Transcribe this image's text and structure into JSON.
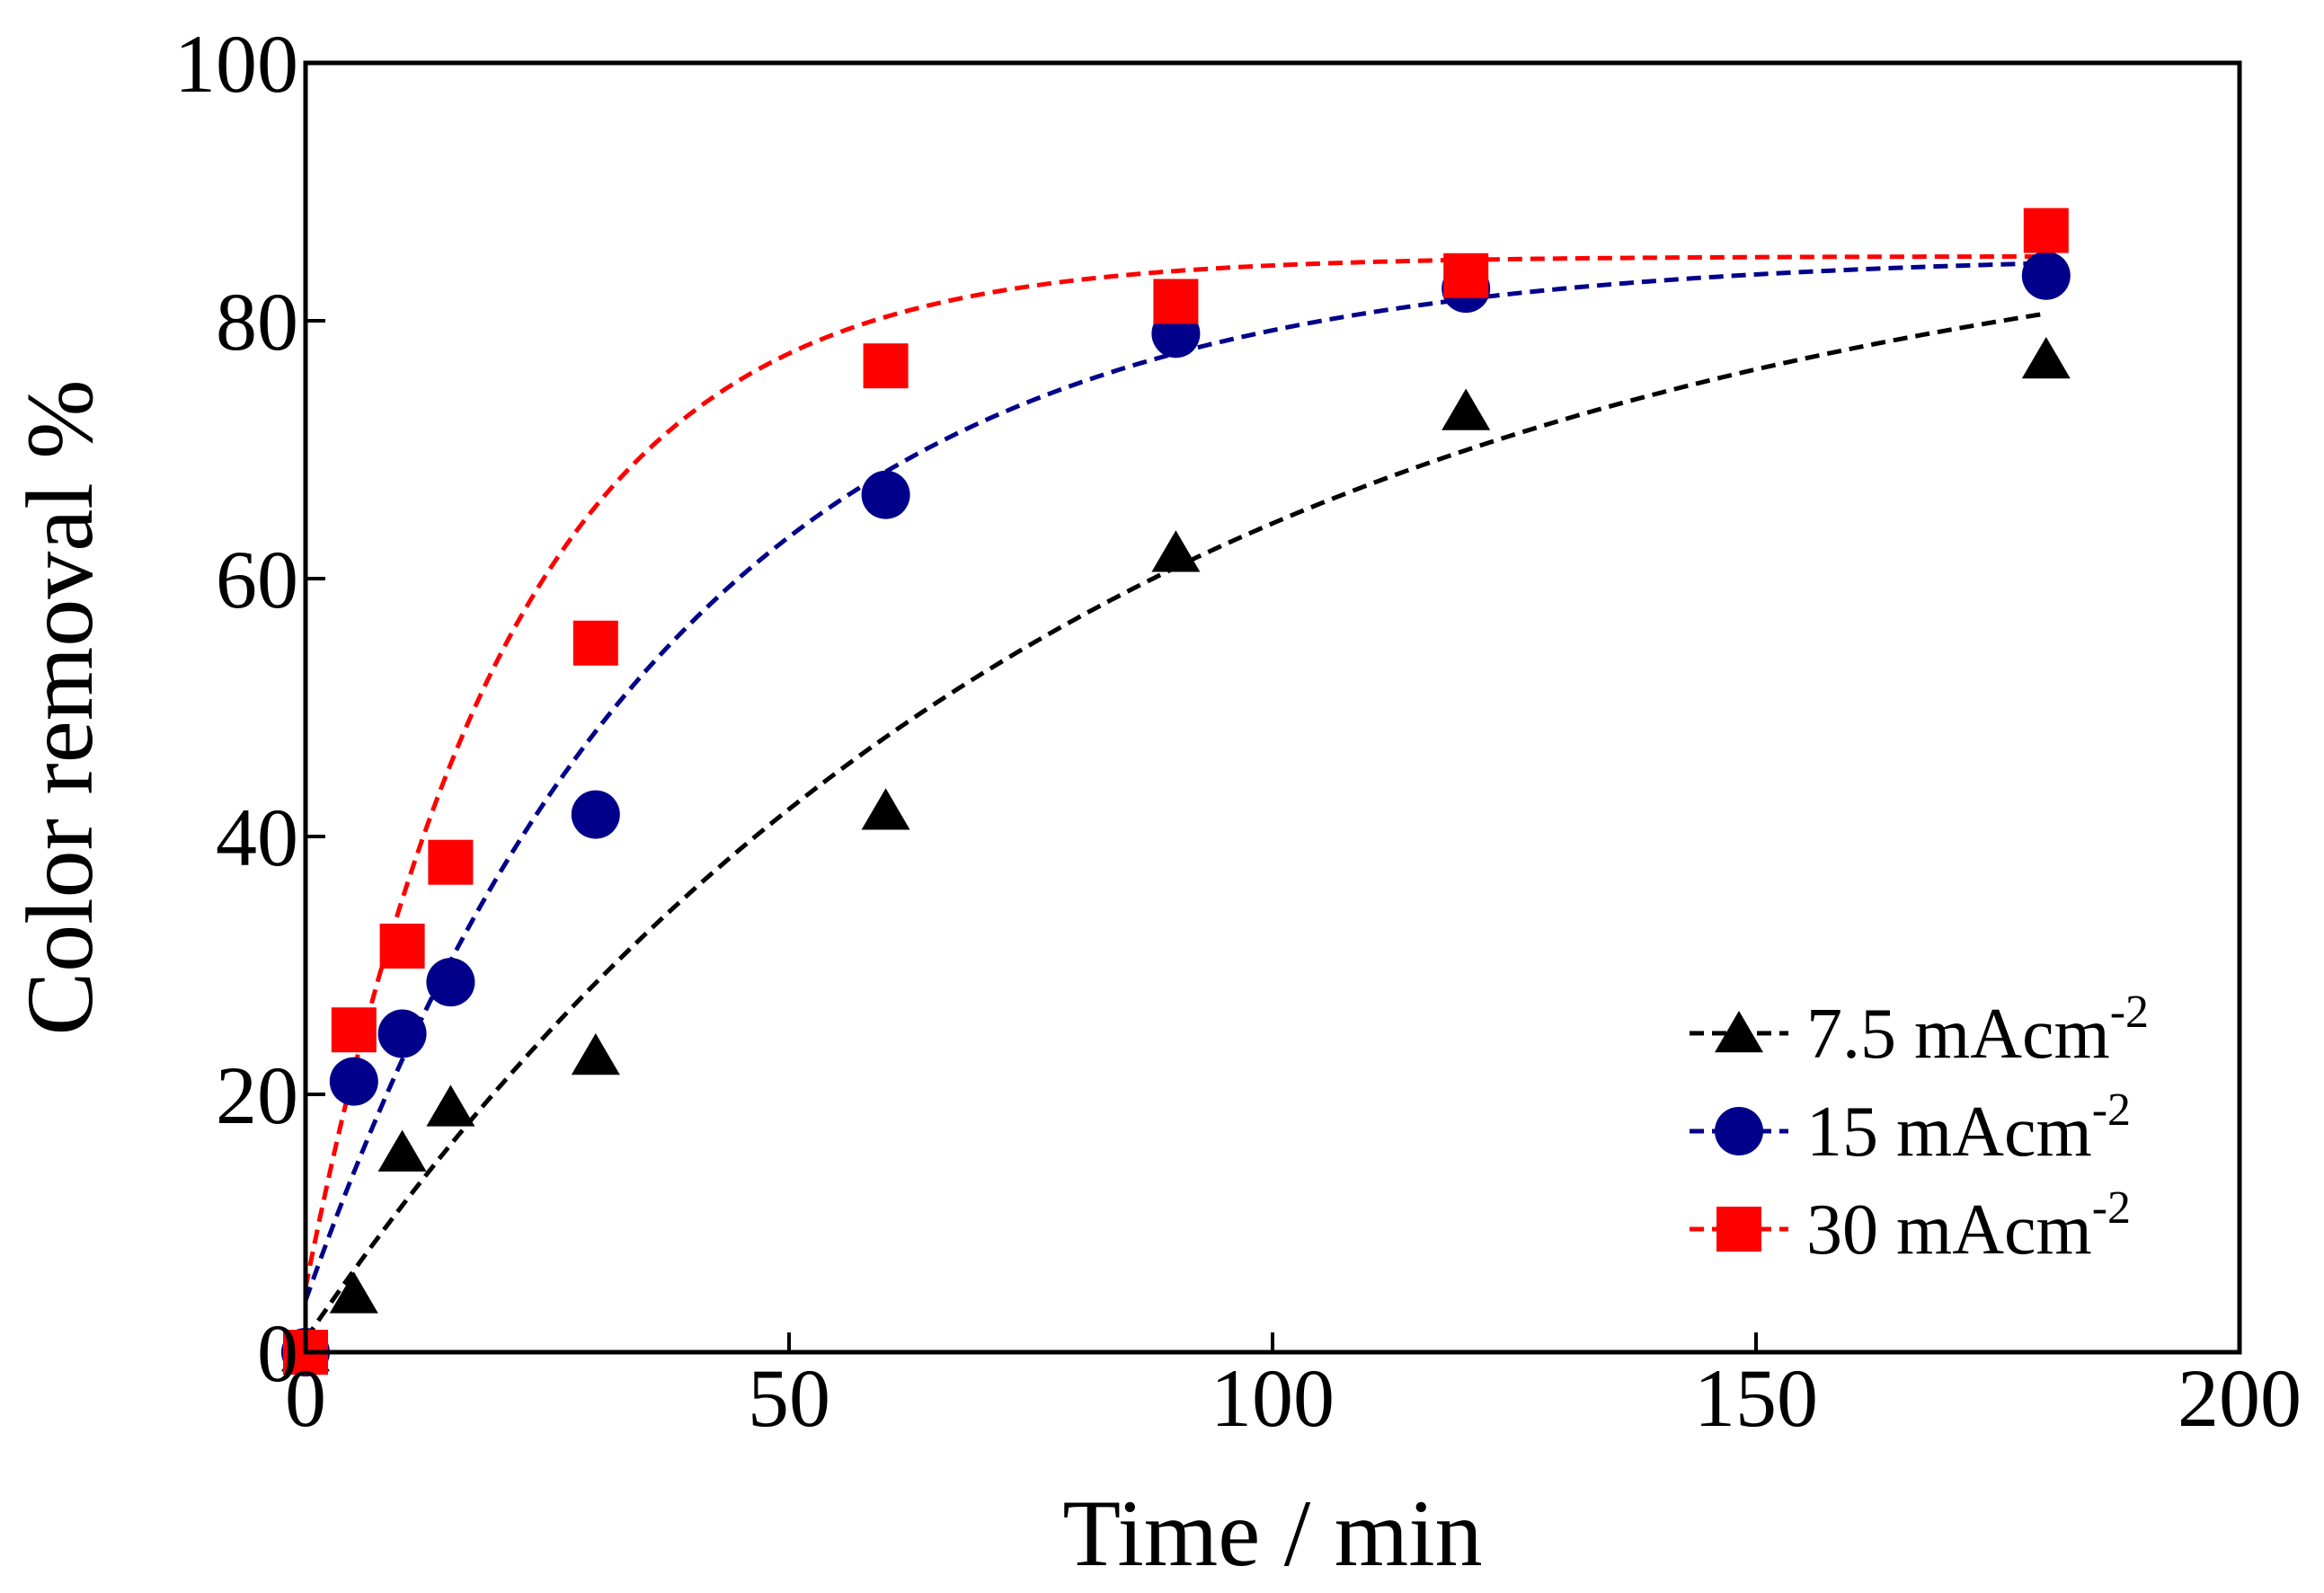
{
  "chart_data": {
    "type": "scatter",
    "title": "",
    "xlabel": "Time / min",
    "ylabel": "Color removal %",
    "xlim": [
      0,
      200
    ],
    "ylim": [
      0,
      100
    ],
    "xticks": [
      0,
      50,
      100,
      150,
      200
    ],
    "yticks": [
      0,
      20,
      40,
      60,
      80,
      100
    ],
    "grid": false,
    "legend_position": "bottom-right",
    "series": [
      {
        "name": "7.5 mAcm",
        "unit_exponent": "-2",
        "marker": "triangle",
        "color": "#000000",
        "x": [
          0,
          5,
          10,
          15,
          30,
          60,
          90,
          120,
          180
        ],
        "y": [
          0,
          4.5,
          15.5,
          19,
          23,
          42,
          62,
          73,
          77
        ],
        "fit": {
          "form": "A*(1-exp(-k*t))+c",
          "A": 89.2,
          "k": 0.01236,
          "c": 1.0,
          "style": "dashed"
        }
      },
      {
        "name": "15 mAcm",
        "unit_exponent": "-2",
        "marker": "circle",
        "color": "#00008b",
        "x": [
          0,
          5,
          10,
          15,
          30,
          60,
          90,
          120,
          180
        ],
        "y": [
          0,
          21,
          24.7,
          28.7,
          41.7,
          66.5,
          79,
          82.5,
          83.5
        ],
        "fit": {
          "form": "A*(1-exp(-k*t))+c",
          "A": 81.2,
          "k": 0.02615,
          "c": 4.0,
          "style": "dashed"
        }
      },
      {
        "name": "30 mAcm",
        "unit_exponent": "-2",
        "marker": "square",
        "color": "#ff0000",
        "x": [
          0,
          5,
          10,
          15,
          30,
          60,
          90,
          120,
          180
        ],
        "y": [
          0,
          25,
          31.5,
          38,
          55,
          76.5,
          81.5,
          83.5,
          87
        ],
        "fit": {
          "form": "A*(1-exp(-k*t))+c",
          "A": 80.0,
          "k": 0.04724,
          "c": 5.0,
          "style": "dashed"
        }
      }
    ]
  }
}
